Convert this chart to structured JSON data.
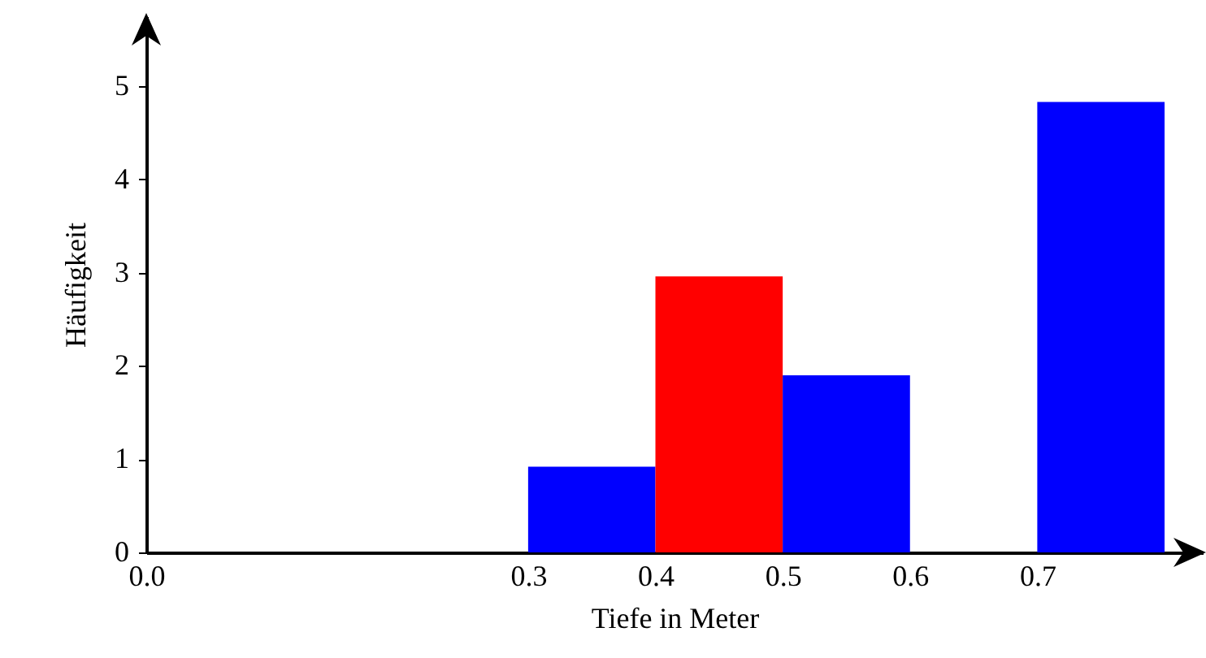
{
  "chart_data": {
    "type": "histogram",
    "xlabel": "Tiefe in Meter",
    "ylabel": "Häufigkeit",
    "bins": [
      0.3,
      0.4,
      0.5,
      0.6,
      0.7,
      0.8
    ],
    "values": [
      0.92,
      2.96,
      1.9,
      0,
      4.83
    ],
    "colors": [
      "#0000ff",
      "#ff0000",
      "#0000ff",
      "#0000ff",
      "#0000ff"
    ],
    "xlim": [
      0,
      0.83
    ],
    "xticks": [
      {
        "value": 0,
        "label": "0.0"
      },
      0.3,
      0.4,
      0.5,
      0.6,
      0.7
    ],
    "ylim": [
      0,
      5.75
    ],
    "yticks": [
      0,
      1,
      2,
      3,
      4,
      5
    ],
    "grid": false
  }
}
